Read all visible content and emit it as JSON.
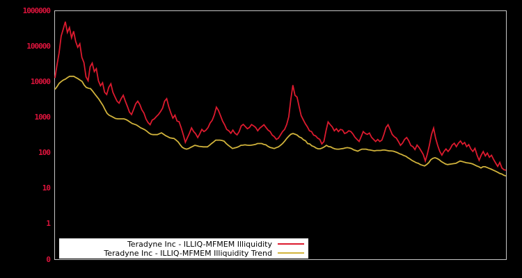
{
  "window": {
    "background": "#000000",
    "plot_border_color": "#c8c8c8",
    "axis_label_color": "#dc143c"
  },
  "chart_data": {
    "type": "line",
    "title": "",
    "xlabel": "",
    "ylabel": "",
    "yscale": "log",
    "ylim": [
      0.1,
      1000000
    ],
    "grid": false,
    "legend_position": "bottom-center",
    "yticks": [
      {
        "label": "1000000",
        "value": 1000000
      },
      {
        "label": "100000",
        "value": 100000
      },
      {
        "label": "10000",
        "value": 10000
      },
      {
        "label": "1000",
        "value": 1000
      },
      {
        "label": "100",
        "value": 100
      },
      {
        "label": "10",
        "value": 10
      },
      {
        "label": "1",
        "value": 1
      },
      {
        "label": "0",
        "value": 0.1
      }
    ],
    "series": [
      {
        "name": "Teradyne Inc - ILLIQ-MFMEM Illiquidity",
        "color": "#dc1a2e",
        "width": 1.8,
        "values": [
          12600,
          30000,
          64000,
          190000,
          300000,
          480000,
          240000,
          330000,
          170000,
          260000,
          135000,
          92000,
          115000,
          48000,
          34000,
          13500,
          10500,
          26000,
          33000,
          19000,
          23000,
          10500,
          7600,
          9200,
          5000,
          4300,
          6900,
          8600,
          5000,
          3700,
          2800,
          2450,
          3300,
          4100,
          2800,
          2000,
          1380,
          1180,
          1650,
          2350,
          2800,
          2250,
          1600,
          1300,
          880,
          700,
          610,
          820,
          890,
          1040,
          1180,
          1420,
          1780,
          2800,
          3300,
          1950,
          1300,
          930,
          1130,
          770,
          740,
          500,
          320,
          195,
          260,
          350,
          495,
          390,
          340,
          265,
          340,
          450,
          390,
          430,
          510,
          680,
          810,
          1150,
          1900,
          1550,
          1100,
          770,
          610,
          450,
          410,
          350,
          430,
          350,
          315,
          390,
          560,
          620,
          540,
          470,
          510,
          615,
          565,
          510,
          410,
          490,
          540,
          610,
          510,
          430,
          390,
          310,
          280,
          235,
          255,
          315,
          390,
          450,
          615,
          1020,
          3200,
          7900,
          4100,
          3650,
          1950,
          1100,
          840,
          650,
          530,
          410,
          390,
          310,
          295,
          255,
          235,
          175,
          205,
          410,
          730,
          615,
          530,
          410,
          470,
          390,
          450,
          430,
          345,
          365,
          410,
          390,
          335,
          270,
          235,
          205,
          280,
          390,
          345,
          325,
          355,
          270,
          235,
          205,
          235,
          205,
          225,
          325,
          510,
          610,
          450,
          325,
          280,
          255,
          205,
          160,
          185,
          235,
          265,
          215,
          158,
          148,
          122,
          163,
          138,
          112,
          89,
          58,
          91,
          163,
          325,
          490,
          255,
          158,
          108,
          85,
          107,
          127,
          108,
          127,
          163,
          183,
          147,
          183,
          213,
          172,
          193,
          147,
          168,
          127,
          108,
          132,
          85,
          61,
          84,
          107,
          81,
          97,
          74,
          84,
          64,
          51,
          41,
          53,
          37,
          33,
          32
        ]
      },
      {
        "name": "Teradyne Inc - ILLIQ-MFMEM Illiquidity Trend",
        "color": "#d2b43c",
        "width": 1.8,
        "values": [
          6000,
          7200,
          8900,
          10000,
          11000,
          11700,
          12900,
          14000,
          14000,
          14000,
          12900,
          12000,
          11000,
          10000,
          7900,
          6800,
          6500,
          6300,
          5400,
          4500,
          3800,
          3200,
          2600,
          2100,
          1600,
          1260,
          1120,
          1050,
          980,
          910,
          890,
          890,
          890,
          890,
          850,
          790,
          720,
          660,
          630,
          600,
          550,
          500,
          470,
          440,
          400,
          355,
          330,
          320,
          320,
          320,
          340,
          360,
          330,
          300,
          280,
          260,
          255,
          250,
          225,
          200,
          165,
          140,
          130,
          125,
          130,
          140,
          150,
          160,
          155,
          150,
          148,
          145,
          145,
          145,
          160,
          180,
          200,
          225,
          225,
          225,
          220,
          210,
          180,
          160,
          145,
          130,
          135,
          140,
          148,
          160,
          162,
          165,
          162,
          160,
          162,
          165,
          170,
          180,
          180,
          180,
          170,
          165,
          150,
          140,
          135,
          130,
          138,
          145,
          160,
          180,
          210,
          250,
          290,
          330,
          345,
          330,
          310,
          275,
          260,
          230,
          215,
          180,
          175,
          155,
          148,
          135,
          128,
          128,
          135,
          145,
          160,
          148,
          145,
          135,
          128,
          125,
          125,
          128,
          130,
          135,
          138,
          135,
          130,
          120,
          115,
          110,
          118,
          125,
          125,
          125,
          120,
          118,
          115,
          112,
          115,
          115,
          115,
          118,
          118,
          115,
          112,
          112,
          110,
          105,
          100,
          93,
          89,
          83,
          79,
          72,
          66,
          60,
          56,
          52,
          50,
          46,
          44,
          42,
          46,
          52,
          63,
          69,
          72,
          68,
          63,
          56,
          52,
          48,
          46,
          47,
          48,
          49,
          50,
          54,
          58,
          56,
          54,
          52,
          51,
          50,
          48,
          45,
          42,
          40,
          37,
          40,
          40,
          38,
          36,
          34,
          32,
          30,
          28,
          26,
          25,
          23,
          22
        ]
      }
    ]
  }
}
